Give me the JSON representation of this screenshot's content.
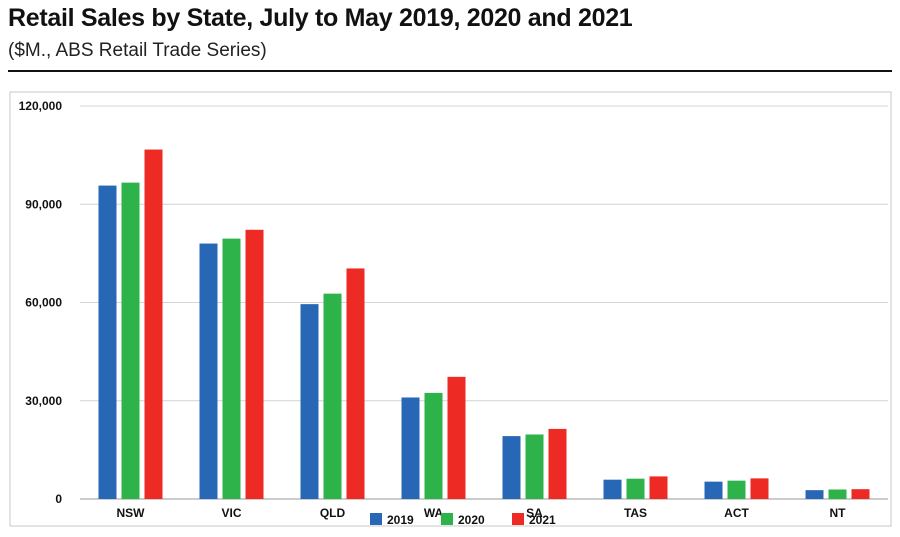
{
  "header": {
    "title": "Retail Sales by State, July to May 2019, 2020 and 2021",
    "subtitle": "($M., ABS Retail Trade Series)"
  },
  "chart_data": {
    "type": "bar",
    "categories": [
      "NSW",
      "VIC",
      "QLD",
      "WA",
      "SA",
      "TAS",
      "ACT",
      "NT"
    ],
    "series": [
      {
        "name": "2019",
        "color": "#2867b5",
        "values": [
          95700,
          78000,
          59500,
          31000,
          19200,
          5900,
          5300,
          2700
        ]
      },
      {
        "name": "2020",
        "color": "#2db34a",
        "values": [
          96600,
          79500,
          62700,
          32400,
          19700,
          6200,
          5600,
          2900
        ]
      },
      {
        "name": "2021",
        "color": "#ee2a24",
        "values": [
          106700,
          82200,
          70400,
          37300,
          21400,
          6900,
          6300,
          3000
        ]
      }
    ],
    "yticks": [
      0,
      30000,
      60000,
      90000,
      120000
    ],
    "ytick_labels": [
      "0",
      "30,000",
      "60,000",
      "90,000",
      "120,000"
    ],
    "ylim": [
      0,
      120000
    ],
    "grid": true,
    "legend_position": "bottom-center"
  }
}
